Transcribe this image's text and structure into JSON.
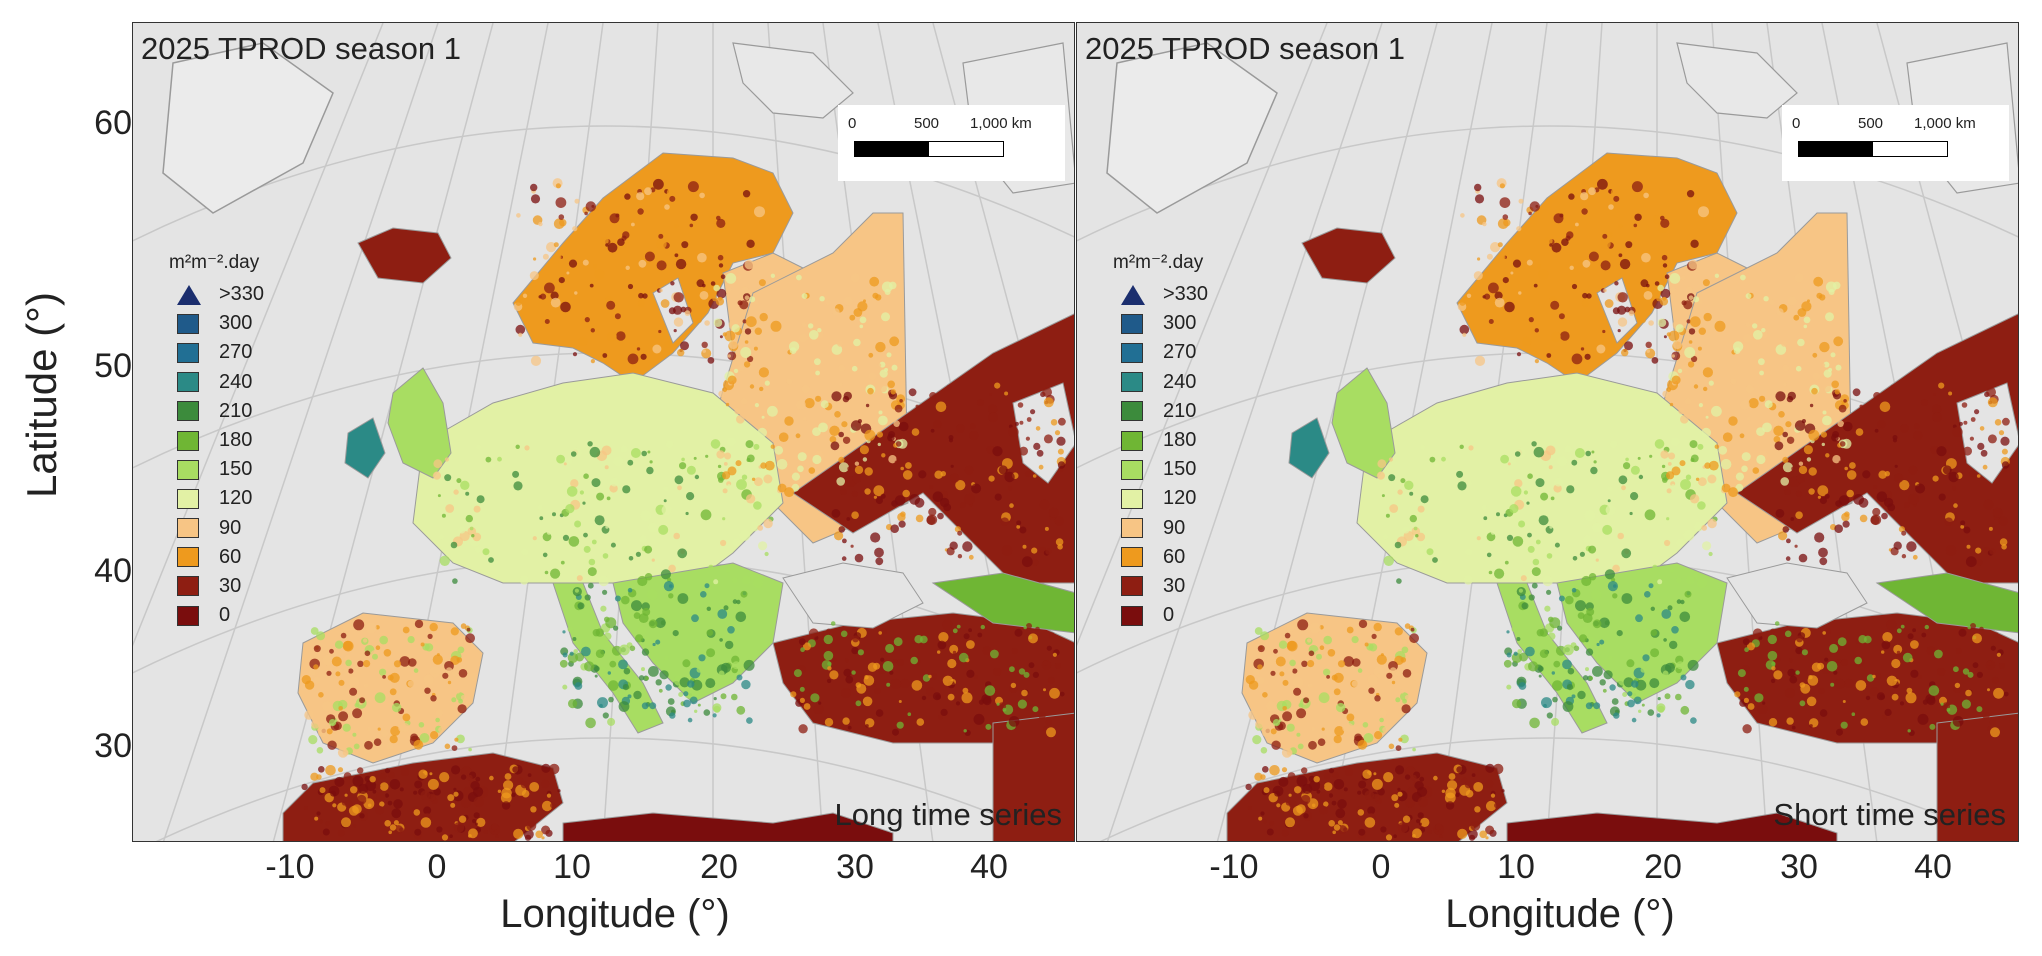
{
  "axes": {
    "y_title": "Latitude (°)",
    "x_title": "Longitude (°)",
    "y_ticks": [
      "60",
      "50",
      "40",
      "30"
    ],
    "x_ticks": [
      "-10",
      "0",
      "10",
      "20",
      "30",
      "40"
    ]
  },
  "legend": {
    "units": "m²m⁻².day",
    "items": [
      {
        "label": ">330",
        "color": "#1b2e6e",
        "shape": "triangle"
      },
      {
        "label": "300",
        "color": "#1f5a8a"
      },
      {
        "label": "270",
        "color": "#216f94"
      },
      {
        "label": "240",
        "color": "#2b8a86"
      },
      {
        "label": "210",
        "color": "#3c8b3c"
      },
      {
        "label": "180",
        "color": "#6fb634"
      },
      {
        "label": "150",
        "color": "#a8dd62"
      },
      {
        "label": "120",
        "color": "#e2f1a5"
      },
      {
        "label": "90",
        "color": "#f7c585"
      },
      {
        "label": "60",
        "color": "#ee9a1e"
      },
      {
        "label": "30",
        "color": "#8e1e12"
      },
      {
        "label": "0",
        "color": "#7a0d0d"
      }
    ]
  },
  "scale_bar": {
    "labels": [
      "0",
      "500",
      "1,000 km"
    ]
  },
  "panels": [
    {
      "title": "2025 TPROD season 1",
      "series_label": "Long time series"
    },
    {
      "title": "2025 TPROD season 1",
      "series_label": "Short time series"
    }
  ],
  "colors": {
    "background": "#e4e4e4",
    "coast": "#9a9a9a",
    "graticule": "#c8c8c8"
  }
}
